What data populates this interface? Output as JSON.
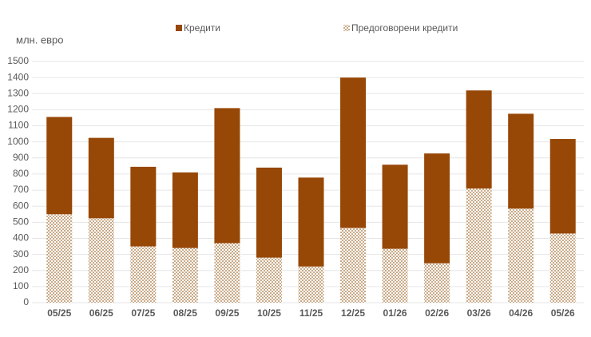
{
  "chart_data": {
    "type": "stacked-bar",
    "y_label": "млн. евро",
    "categories": [
      "05/25",
      "06/25",
      "07/25",
      "08/25",
      "09/25",
      "10/25",
      "11/25",
      "12/25",
      "01/26",
      "02/26",
      "03/26",
      "04/26",
      "05/26"
    ],
    "series": [
      {
        "name": "Кредити",
        "color": "#974706",
        "values": [
          605,
          500,
          495,
          470,
          840,
          560,
          553,
          935,
          523,
          683,
          610,
          590,
          588
        ]
      },
      {
        "name": "Предоговорени  кредити",
        "color": "#c9aa88",
        "pattern": "checker",
        "values": [
          550,
          525,
          350,
          340,
          370,
          280,
          225,
          465,
          335,
          245,
          710,
          585,
          430
        ]
      }
    ],
    "ylim": [
      0,
      1500
    ],
    "yticks": [
      0,
      100,
      200,
      300,
      400,
      500,
      600,
      700,
      800,
      900,
      1000,
      1100,
      1200,
      1300,
      1400,
      1500
    ],
    "grid": true,
    "legend": "top"
  }
}
